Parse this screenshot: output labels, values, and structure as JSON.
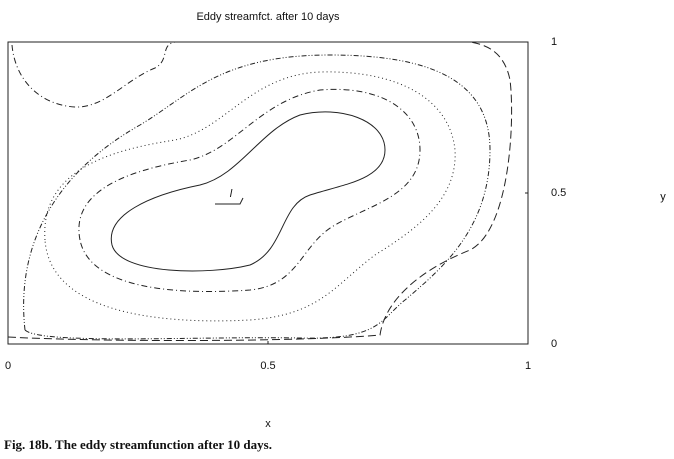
{
  "chart_data": {
    "type": "contour",
    "title": "Eddy streamfct. after 10 days",
    "x_label": "x",
    "y_label": "y",
    "xlim": [
      0,
      1
    ],
    "ylim": [
      0,
      1
    ],
    "xticks": [
      0,
      0.5,
      1
    ],
    "yticks": [
      0,
      0.5,
      1
    ],
    "annotations": [
      "l"
    ]
  },
  "caption": "Fig. 18b. The eddy streamfunction after 10 days."
}
